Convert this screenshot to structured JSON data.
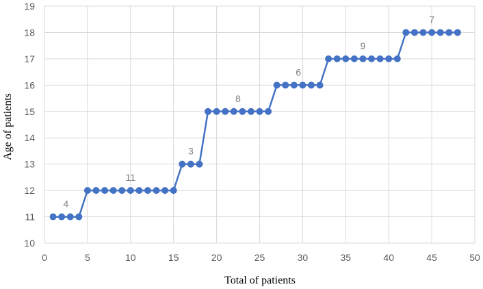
{
  "chart_data": {
    "type": "line",
    "title": "",
    "xlabel": "Total of patients",
    "ylabel": "Age of patients",
    "xlim": [
      0,
      50
    ],
    "ylim": [
      10,
      19
    ],
    "xticks": [
      0,
      5,
      10,
      15,
      20,
      25,
      30,
      35,
      40,
      45,
      50
    ],
    "yticks": [
      10,
      11,
      12,
      13,
      14,
      15,
      16,
      17,
      18,
      19
    ],
    "grid": true,
    "legend": "none",
    "series": [
      {
        "color": "#4472c4",
        "marker": "circle",
        "x": [
          1,
          2,
          3,
          4,
          5,
          6,
          7,
          8,
          9,
          10,
          11,
          12,
          13,
          14,
          15,
          16,
          17,
          18,
          19,
          20,
          21,
          22,
          23,
          24,
          25,
          26,
          27,
          28,
          29,
          30,
          31,
          32,
          33,
          34,
          35,
          36,
          37,
          38,
          39,
          40,
          41,
          42,
          43,
          44,
          45,
          46,
          47,
          48
        ],
        "y": [
          11,
          11,
          11,
          11,
          12,
          12,
          12,
          12,
          12,
          12,
          12,
          12,
          12,
          12,
          12,
          13,
          13,
          13,
          15,
          15,
          15,
          15,
          15,
          15,
          15,
          15,
          16,
          16,
          16,
          16,
          16,
          16,
          17,
          17,
          17,
          17,
          17,
          17,
          17,
          17,
          17,
          18,
          18,
          18,
          18,
          18,
          18,
          18
        ]
      }
    ],
    "annotations": [
      {
        "text": "4",
        "x": 2.5,
        "y": 11
      },
      {
        "text": "11",
        "x": 10,
        "y": 12
      },
      {
        "text": "3",
        "x": 17,
        "y": 13
      },
      {
        "text": "8",
        "x": 22.5,
        "y": 15
      },
      {
        "text": "6",
        "x": 29.5,
        "y": 16
      },
      {
        "text": "9",
        "x": 37,
        "y": 17
      },
      {
        "text": "7",
        "x": 45,
        "y": 18
      }
    ]
  }
}
